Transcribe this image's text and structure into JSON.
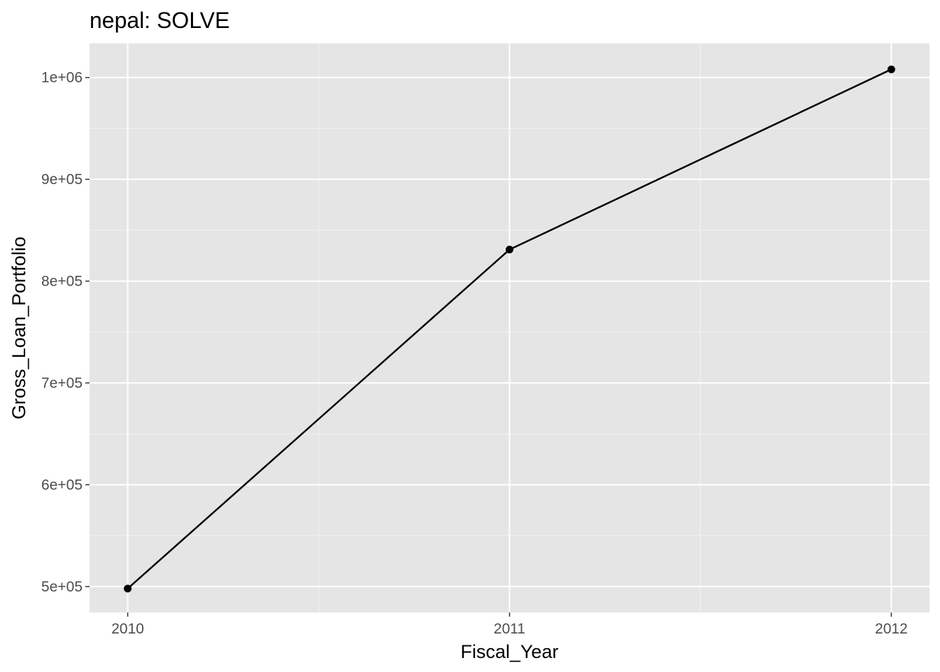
{
  "chart_data": {
    "type": "line",
    "title": "nepal:  SOLVE",
    "xlabel": "Fiscal_Year",
    "ylabel": "Gross_Loan_Portfolio",
    "x": [
      2010,
      2011,
      2012
    ],
    "series": [
      {
        "values": [
          498000,
          831000,
          1008000
        ]
      }
    ],
    "x_ticks": [
      2010,
      2011,
      2012
    ],
    "x_tick_labels": [
      "2010",
      "2011",
      "2012"
    ],
    "y_ticks": [
      500000,
      600000,
      700000,
      800000,
      900000,
      1000000
    ],
    "y_tick_labels": [
      "5e+05",
      "6e+05",
      "7e+05",
      "8e+05",
      "9e+05",
      "1e+06"
    ],
    "xlim": [
      2009.9,
      2012.1
    ],
    "ylim": [
      474500,
      1033500
    ],
    "grid": true,
    "colors": {
      "panel_background": "#e5e5e5",
      "grid_major": "#ffffff",
      "grid_minor": "#f2f2f2",
      "line": "#000000",
      "point": "#000000"
    }
  }
}
